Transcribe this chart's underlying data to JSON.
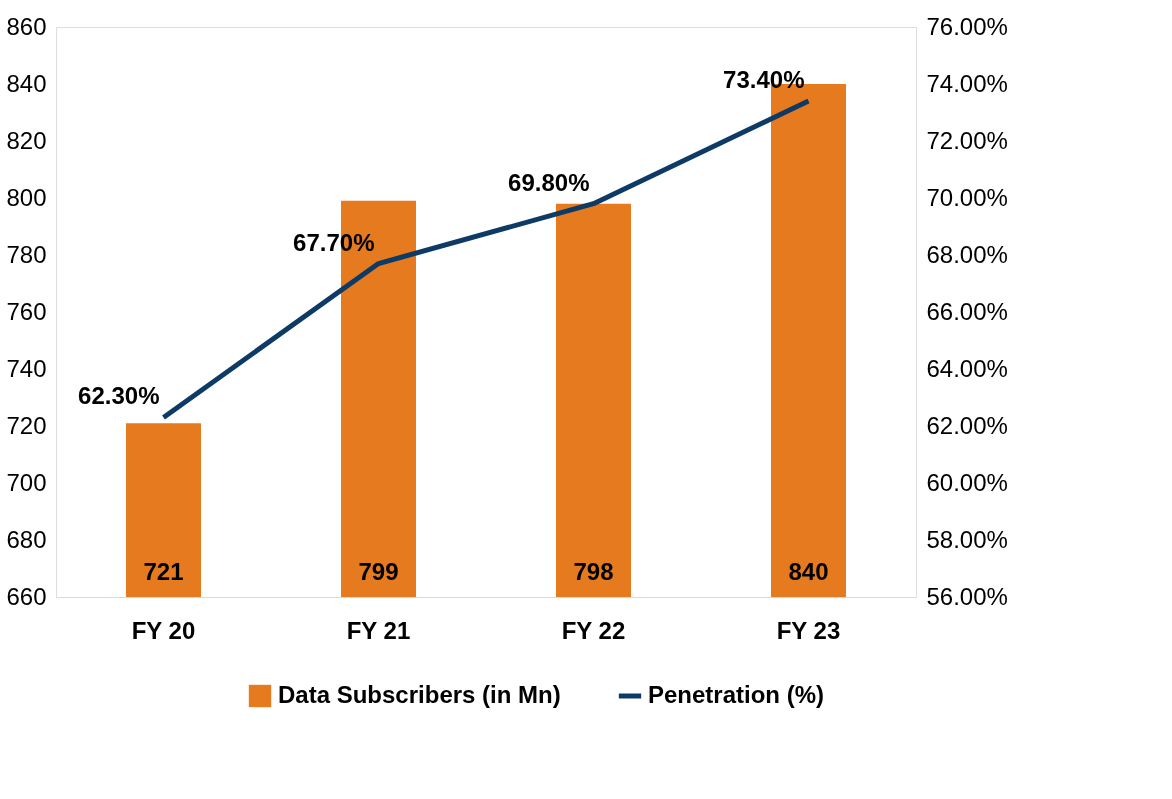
{
  "chart_data": {
    "type": "bar",
    "categories": [
      "FY 20",
      "FY 21",
      "FY 22",
      "FY 23"
    ],
    "series": [
      {
        "name": "Data Subscribers (in Mn)",
        "color": "#e67a1e",
        "values": [
          721,
          799,
          798,
          840
        ],
        "value_labels": [
          "721",
          "799",
          "798",
          "840"
        ]
      },
      {
        "name": "Penetration (%)",
        "type": "line",
        "axis": "y2",
        "color": "#0d3b66",
        "values": [
          62.3,
          67.7,
          69.8,
          73.4
        ],
        "value_labels": [
          "62.30%",
          "67.70%",
          "69.80%",
          "73.40%"
        ]
      }
    ],
    "ylim": [
      660,
      860
    ],
    "yticks": [
      660,
      680,
      700,
      720,
      740,
      760,
      780,
      800,
      820,
      840,
      860
    ],
    "y2lim": [
      56,
      76
    ],
    "y2ticks": [
      {
        "value": 56,
        "label": "56.00%"
      },
      {
        "value": 58,
        "label": "58.00%"
      },
      {
        "value": 60,
        "label": "60.00%"
      },
      {
        "value": 62,
        "label": "62.00%"
      },
      {
        "value": 64,
        "label": "64.00%"
      },
      {
        "value": 66,
        "label": "66.00%"
      },
      {
        "value": 68,
        "label": "68.00%"
      },
      {
        "value": 70,
        "label": "70.00%"
      },
      {
        "value": 72,
        "label": "72.00%"
      },
      {
        "value": 74,
        "label": "74.00%"
      },
      {
        "value": 76,
        "label": "76.00%"
      }
    ],
    "grid": false,
    "legend": "bottom",
    "marker": "none",
    "line_style": "solid"
  }
}
